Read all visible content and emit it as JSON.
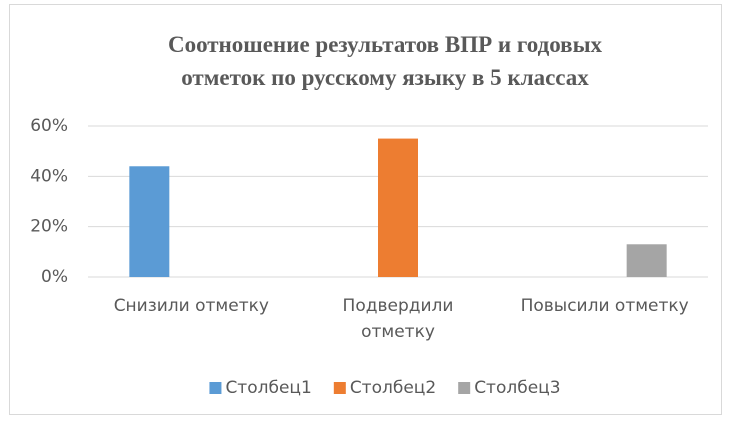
{
  "chart_data": {
    "type": "bar",
    "title": "Соотношение результатов ВПР и годовых\nотметок по  русскому языку в 5 классах",
    "categories": [
      "Снизили отметку",
      "Подвердили\nотметку",
      "Повысили отметку"
    ],
    "series": [
      {
        "name": "Столбец1",
        "color": "#5b9bd5",
        "values": [
          44,
          null,
          null
        ]
      },
      {
        "name": "Столбец2",
        "color": "#ed7d31",
        "values": [
          null,
          55,
          null
        ]
      },
      {
        "name": "Столбец3",
        "color": "#a5a5a5",
        "values": [
          null,
          null,
          13
        ]
      }
    ],
    "ylim": [
      0,
      60
    ],
    "yticks": [
      {
        "value": 0,
        "label": "0%"
      },
      {
        "value": 20,
        "label": "20%"
      },
      {
        "value": 40,
        "label": "40%"
      },
      {
        "value": 60,
        "label": "60%"
      }
    ],
    "grid": true,
    "legend": "bottom"
  }
}
